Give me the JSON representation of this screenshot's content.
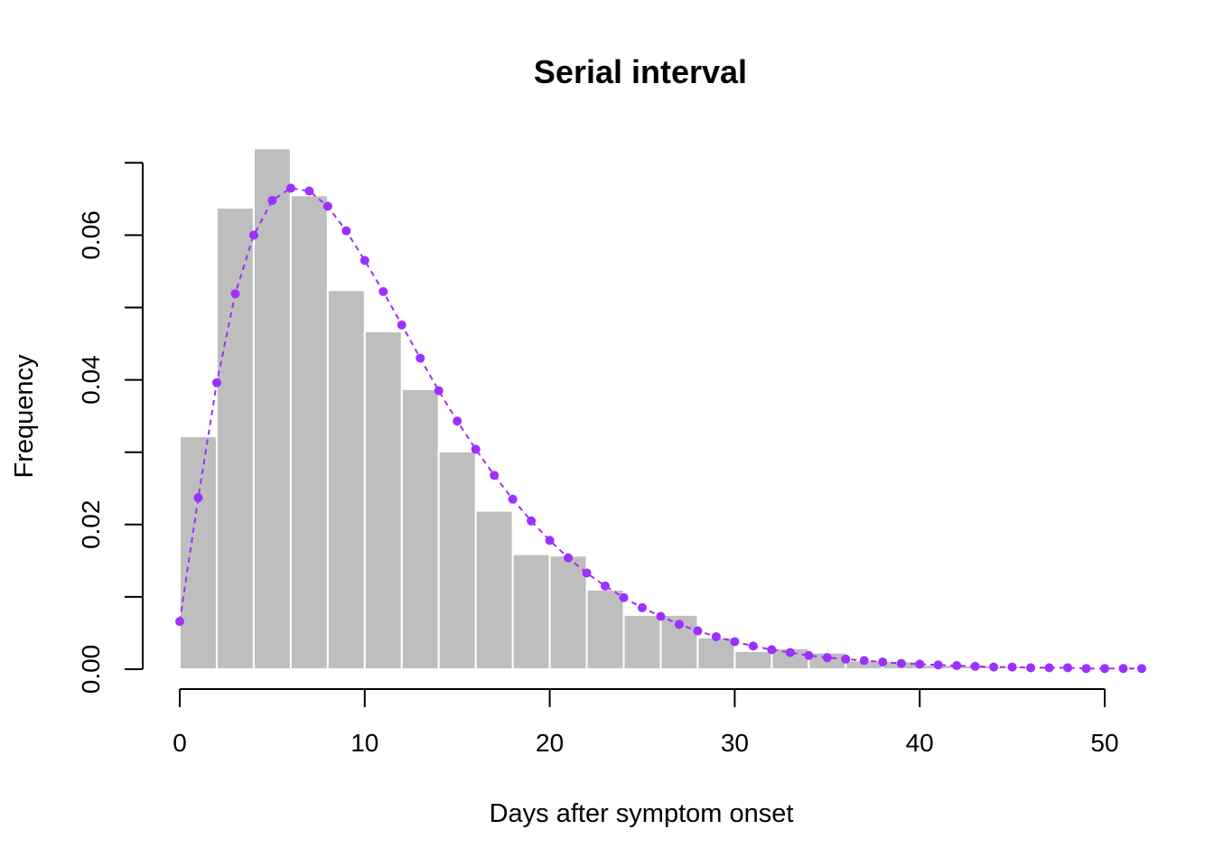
{
  "chart_data": {
    "type": "bar",
    "title": "Serial interval",
    "xlabel": "Days after symptom onset",
    "ylabel": "Frequency",
    "xlim": [
      0,
      52
    ],
    "ylim": [
      0,
      0.072
    ],
    "x_ticks": [
      0,
      10,
      20,
      30,
      40,
      50
    ],
    "y_ticks": [
      0,
      0.01,
      0.02,
      0.03,
      0.04,
      0.05,
      0.06,
      0.07
    ],
    "y_tick_labels": [
      "0.00",
      "",
      "0.02",
      "",
      "0.04",
      "",
      "0.06",
      ""
    ],
    "colors": {
      "bars": "#bebebe",
      "bar_border": "#ffffff",
      "fit": "#9b30ff"
    },
    "histogram": {
      "bin_width": 2,
      "bin_starts": [
        0,
        2,
        4,
        6,
        8,
        10,
        12,
        14,
        16,
        18,
        20,
        22,
        24,
        26,
        28,
        30,
        32,
        34,
        36,
        38,
        40,
        42,
        44,
        46,
        48,
        50
      ],
      "values": [
        0.0322,
        0.0638,
        0.072,
        0.0655,
        0.0524,
        0.0467,
        0.0387,
        0.0301,
        0.0219,
        0.0159,
        0.0157,
        0.011,
        0.0075,
        0.0075,
        0.0044,
        0.0025,
        0.0029,
        0.0023,
        0.0012,
        0.0011,
        0.0006,
        0.0005,
        0.0004,
        0.0002,
        0.0001,
        0.0001
      ]
    },
    "fitted": {
      "x": [
        0,
        1,
        2,
        3,
        4,
        5,
        6,
        7,
        8,
        9,
        10,
        11,
        12,
        13,
        14,
        15,
        16,
        17,
        18,
        19,
        20,
        21,
        22,
        23,
        24,
        25,
        26,
        27,
        28,
        29,
        30,
        31,
        32,
        33,
        34,
        35,
        36,
        37,
        38,
        39,
        40,
        41,
        42,
        43,
        44,
        45,
        46,
        47,
        48,
        49,
        50,
        51,
        52
      ],
      "y": [
        0.0066,
        0.0237,
        0.0396,
        0.0519,
        0.06,
        0.0648,
        0.0665,
        0.0661,
        0.064,
        0.0606,
        0.0565,
        0.0522,
        0.0476,
        0.043,
        0.0385,
        0.0343,
        0.0304,
        0.0268,
        0.0235,
        0.0205,
        0.0178,
        0.0154,
        0.0133,
        0.0115,
        0.0099,
        0.0085,
        0.0073,
        0.0062,
        0.0053,
        0.0045,
        0.0038,
        0.0032,
        0.0027,
        0.0023,
        0.0019,
        0.0016,
        0.0014,
        0.0012,
        0.001,
        0.0008,
        0.0007,
        0.0006,
        0.0005,
        0.0004,
        0.0003,
        0.0003,
        0.0002,
        0.0002,
        0.0002,
        0.0001,
        0.0001,
        0.0001,
        0.0001
      ]
    }
  }
}
